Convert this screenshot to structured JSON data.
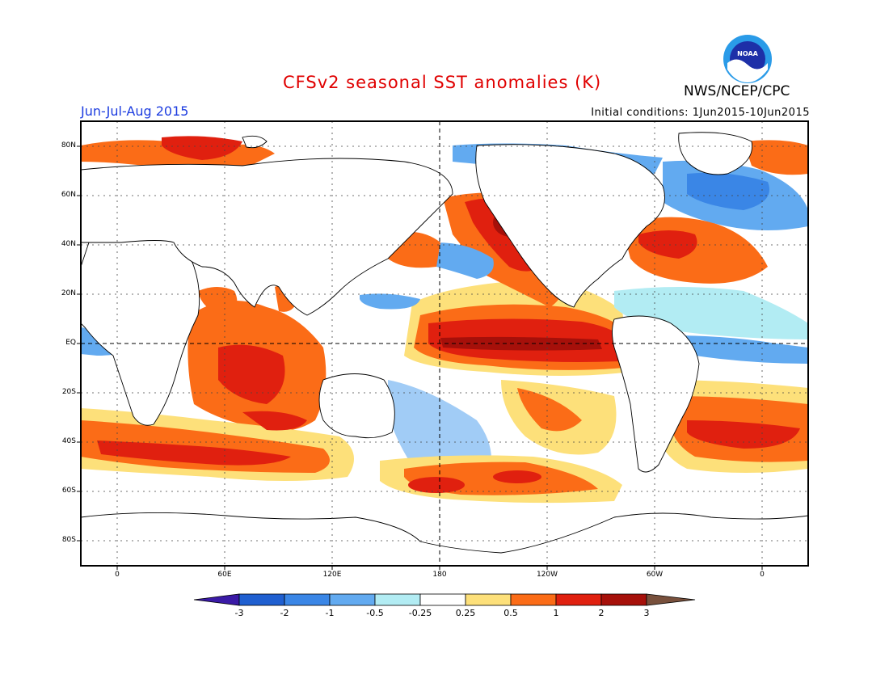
{
  "title": "CFSv2 seasonal SST anomalies (K)",
  "period": "Jun-Jul-Aug 2015",
  "initial_conditions": "Initial conditions: 1Jun2015-10Jun2015",
  "agency": "NWS/NCEP/CPC",
  "logo_text": "NOAA",
  "lat_labels": [
    "80N",
    "60N",
    "40N",
    "20N",
    "EQ",
    "20S",
    "40S",
    "60S",
    "80S"
  ],
  "lon_labels": [
    "0",
    "60E",
    "120E",
    "180",
    "120W",
    "60W",
    "0"
  ],
  "colorbar": {
    "labels": [
      "-3",
      "-2",
      "-1",
      "-0.5",
      "-0.25",
      "0.25",
      "0.5",
      "1",
      "2",
      "3"
    ],
    "colors": [
      "#3a1aa6",
      "#1f5fd0",
      "#3a86e6",
      "#62aaf0",
      "#b2ecf3",
      "#ffffff",
      "#fde07a",
      "#fb6c17",
      "#e0200f",
      "#a6100a",
      "#78503c"
    ]
  },
  "anomaly_colors": {
    "strong_warm": "#a6100a",
    "warm": "#e0200f",
    "moderate_warm": "#fb6c17",
    "slight_warm": "#fde07a",
    "slight_cool": "#b2ecf3",
    "cool": "#62aaf0",
    "moderate_cool": "#3a86e6"
  }
}
